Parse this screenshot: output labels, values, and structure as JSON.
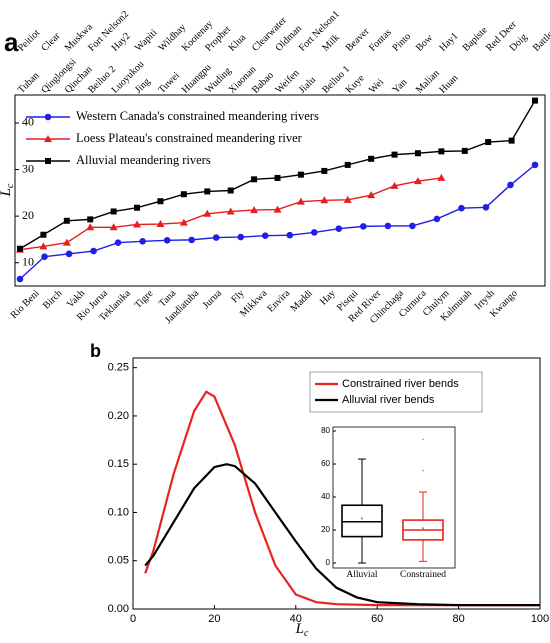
{
  "chart_data": [
    {
      "type": "line",
      "panel_label": "a",
      "y_label": "L",
      "y_label_sub": "c",
      "ylim": [
        5,
        46
      ],
      "yticks": [
        10,
        20,
        30,
        40
      ],
      "series": [
        {
          "name": "Western Canada's constrained meandering rivers",
          "color": "#1f1fe6",
          "marker": "circle",
          "label_row": "bottom",
          "categories": [
            "Rio Beni",
            "Birch",
            "Vakh",
            "Rio Jurua",
            "Teklanika",
            "Tigre",
            "Tana",
            "Jandiatuba",
            "Jurua",
            "Fly",
            "Mikkwa",
            "Envira",
            "Maddi",
            "Hay",
            "Pisqui",
            "Red River",
            "Chinchaga",
            "Curnuca",
            "Chulym",
            "Kalmutah",
            "Irtysh",
            "Kwango"
          ],
          "values": [
            6.5,
            11.3,
            11.9,
            12.5,
            14.3,
            14.6,
            14.8,
            14.9,
            15.4,
            15.5,
            15.8,
            15.9,
            16.5,
            17.3,
            17.8,
            17.9,
            17.9,
            19.4,
            21.7,
            21.9,
            26.7,
            31.0
          ]
        },
        {
          "name": "Loess Plateau's constrained meandering river",
          "color": "#e61e1e",
          "marker": "triangle",
          "label_row": "middle",
          "categories": [
            "Tuban",
            "Qinglongsi",
            "Qinchan",
            "Beiluo 2",
            "Luoyukou",
            "Jing",
            "Tuwei",
            "Huangpu",
            "Wuding",
            "Xiaonan",
            "Babao",
            "Weifen",
            "Jialu",
            "Beiluo 1",
            "Kuye",
            "Wei",
            "Yan",
            "Malian",
            "Huan"
          ],
          "values": [
            12.8,
            13.5,
            14.3,
            17.6,
            17.6,
            18.2,
            18.3,
            18.6,
            20.5,
            21.0,
            21.3,
            21.4,
            23.1,
            23.4,
            23.5,
            24.5,
            26.5,
            27.5,
            28.2
          ]
        },
        {
          "name": "Alluvial meandering rivers",
          "color": "#000000",
          "marker": "square",
          "label_row": "top",
          "categories": [
            "Peitiot",
            "Clear",
            "Muskwa",
            "Fort Nelson2",
            "Hay2",
            "Wapiti",
            "Wildhay",
            "Kootenay",
            "Prophet",
            "Klua",
            "Clearwater",
            "Oldman",
            "Fort Nelson1",
            "Milk",
            "Beaver",
            "Fontas",
            "Pinto",
            "Bow",
            "Hay1",
            "Bapiste",
            "Red Deer",
            "Doig",
            "Battle"
          ],
          "values": [
            13.0,
            16.0,
            19.0,
            19.3,
            21.0,
            21.8,
            23.2,
            24.7,
            25.3,
            25.5,
            27.9,
            28.2,
            28.9,
            29.7,
            31.0,
            32.3,
            33.2,
            33.5,
            33.9,
            34.0,
            35.9,
            36.2,
            44.8
          ]
        }
      ]
    },
    {
      "type": "density",
      "panel_label": "b",
      "x_label": "L",
      "x_label_sub": "c",
      "xlim": [
        0,
        100
      ],
      "xticks": [
        0,
        20,
        40,
        60,
        80,
        100
      ],
      "ylim": [
        0,
        0.26
      ],
      "yticks": [
        {
          "value": 0,
          "label": "0.00"
        },
        0.05,
        {
          "value": 0.1,
          "label": "0.10"
        },
        0.15,
        {
          "value": 0.2,
          "label": "0.20"
        },
        0.25
      ],
      "series": [
        {
          "name": "Constrained river bends",
          "color": "#e8231e",
          "x": [
            3,
            5,
            10,
            15,
            18,
            20,
            25,
            30,
            35,
            40,
            45,
            50,
            60,
            70,
            80,
            90,
            100
          ],
          "values": [
            0.037,
            0.06,
            0.14,
            0.205,
            0.225,
            0.22,
            0.17,
            0.1,
            0.045,
            0.015,
            0.007,
            0.005,
            0.004,
            0.004,
            0.004,
            0.004,
            0.004
          ]
        },
        {
          "name": "Alluvial river bends",
          "color": "#000000",
          "x": [
            3,
            5,
            10,
            15,
            20,
            23,
            25,
            30,
            35,
            40,
            45,
            50,
            55,
            60,
            70,
            80,
            90,
            100
          ],
          "values": [
            0.045,
            0.055,
            0.09,
            0.125,
            0.147,
            0.15,
            0.148,
            0.13,
            0.1,
            0.07,
            0.042,
            0.022,
            0.012,
            0.007,
            0.005,
            0.004,
            0.004,
            0.004
          ]
        }
      ]
    },
    {
      "type": "box",
      "ylim": [
        0,
        80
      ],
      "yticks": [
        0,
        20,
        40,
        60,
        80
      ],
      "boxes": [
        {
          "name": "Alluvial",
          "color": "#000000",
          "whisker_low": 0,
          "q1": 16,
          "median": 25,
          "q3": 35,
          "whisker_high": 63,
          "mean": 27,
          "outliers": []
        },
        {
          "name": "Constrained",
          "color": "#e8231e",
          "whisker_low": 1,
          "q1": 14,
          "median": 20,
          "q3": 26,
          "whisker_high": 43,
          "mean": 21,
          "outliers": [
            56,
            75
          ]
        }
      ]
    }
  ]
}
